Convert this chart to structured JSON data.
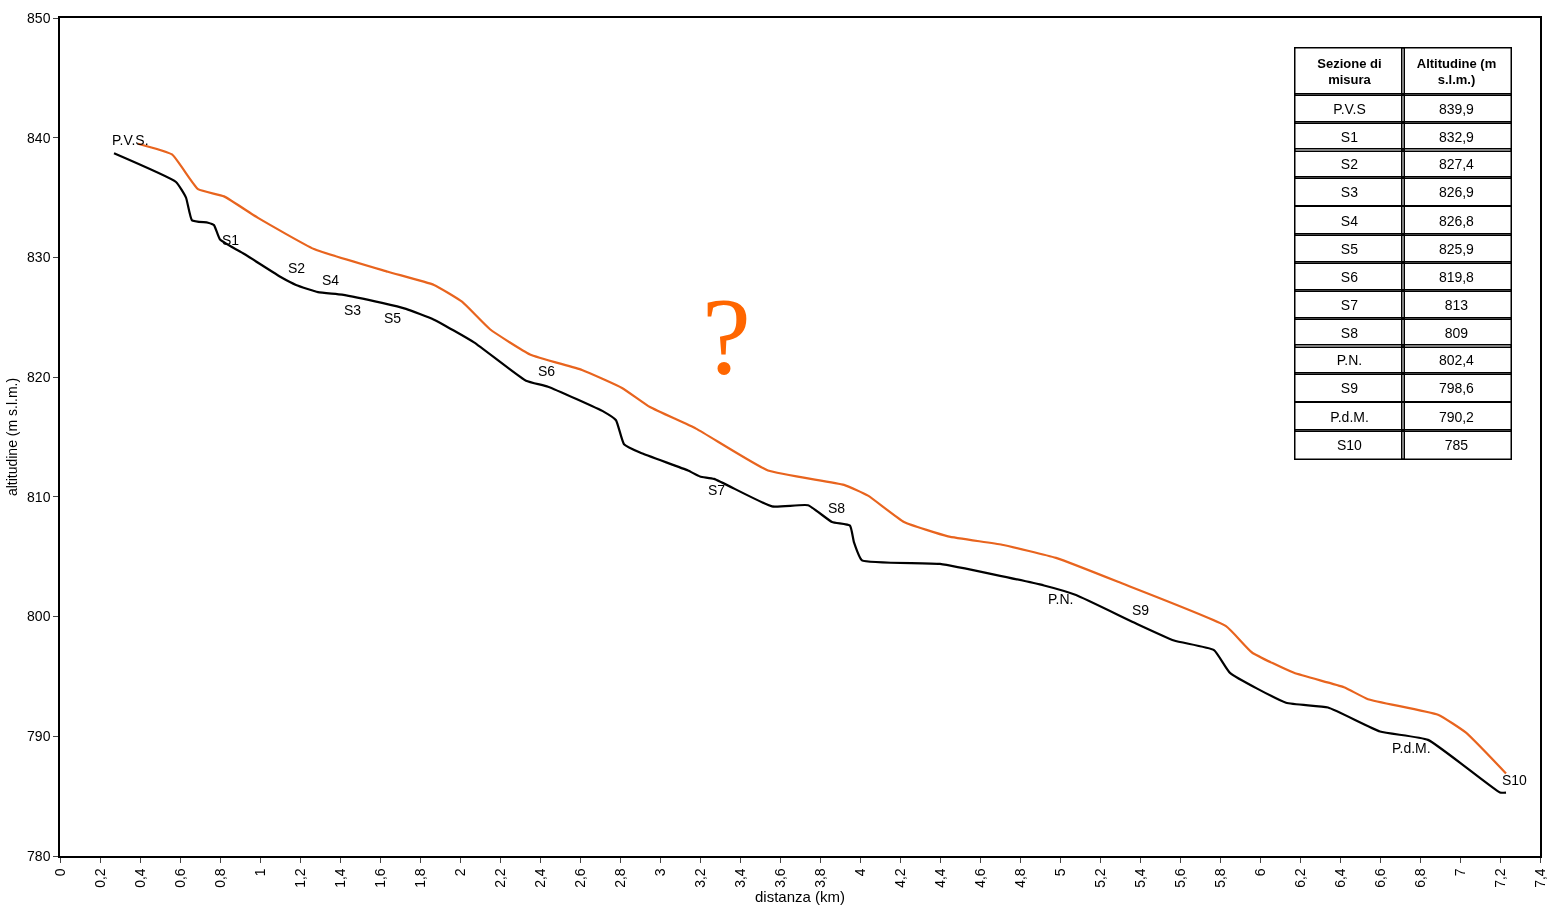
{
  "chart_data": {
    "type": "line",
    "xlabel": "distanza (km)",
    "ylabel": "altitudine (m s.l.m.)",
    "xlim": [
      0,
      7.4
    ],
    "ylim": [
      780,
      850
    ],
    "xticks": [
      0,
      {
        "value": 0.2,
        "label": "0,2"
      },
      {
        "value": 0.4,
        "label": "0,4"
      },
      {
        "value": 0.6,
        "label": "0,6"
      },
      {
        "value": 0.8,
        "label": "0,8"
      },
      1,
      {
        "value": 1.2,
        "label": "1,2"
      },
      {
        "value": 1.4,
        "label": "1,4"
      },
      {
        "value": 1.6,
        "label": "1,6"
      },
      {
        "value": 1.8,
        "label": "1,8"
      },
      2,
      {
        "value": 2.2,
        "label": "2,2"
      },
      {
        "value": 2.4,
        "label": "2,4"
      },
      {
        "value": 2.6,
        "label": "2,6"
      },
      {
        "value": 2.8,
        "label": "2,8"
      },
      3,
      {
        "value": 3.2,
        "label": "3,2"
      },
      {
        "value": 3.4,
        "label": "3,4"
      },
      {
        "value": 3.6,
        "label": "3,6"
      },
      {
        "value": 3.8,
        "label": "3,8"
      },
      4,
      {
        "value": 4.2,
        "label": "4,2"
      },
      {
        "value": 4.4,
        "label": "4,4"
      },
      {
        "value": 4.6,
        "label": "4,6"
      },
      {
        "value": 4.8,
        "label": "4,8"
      },
      5,
      {
        "value": 5.2,
        "label": "5,2"
      },
      {
        "value": 5.4,
        "label": "5,4"
      },
      {
        "value": 5.6,
        "label": "5,6"
      },
      {
        "value": 5.8,
        "label": "5,8"
      },
      6,
      {
        "value": 6.2,
        "label": "6,2"
      },
      {
        "value": 6.4,
        "label": "6,4"
      },
      {
        "value": 6.6,
        "label": "6,6"
      },
      {
        "value": 6.8,
        "label": "6,8"
      },
      7,
      {
        "value": 7.2,
        "label": "7,2"
      },
      {
        "value": 7.4,
        "label": "7,4"
      }
    ],
    "yticks": [
      780,
      790,
      800,
      810,
      820,
      830,
      840,
      850
    ],
    "grid": false,
    "marker": "none",
    "line_style": "solid",
    "series": [
      {
        "color": "#000000",
        "x": [
          0.27,
          0.58,
          0.63,
          0.66,
          0.74,
          0.77,
          0.8,
          0.93,
          1.11,
          1.18,
          1.29,
          1.41,
          1.61,
          1.73,
          1.87,
          2.07,
          2.33,
          2.44,
          2.72,
          2.78,
          2.82,
          2.9,
          3.14,
          3.2,
          3.27,
          3.56,
          3.74,
          3.86,
          3.95,
          3.97,
          4.01,
          4.4,
          4.92,
          5.08,
          5.37,
          5.57,
          5.77,
          5.85,
          6.13,
          6.34,
          6.6,
          6.84,
          7.2,
          7.23
        ],
        "values": [
          838.7,
          836.3,
          835.0,
          833.1,
          832.9,
          832.7,
          831.5,
          830.2,
          828.3,
          827.7,
          827.1,
          826.9,
          826.2,
          825.7,
          824.8,
          822.9,
          819.7,
          819.2,
          817.1,
          816.4,
          814.4,
          813.7,
          812.2,
          811.7,
          811.5,
          809.2,
          809.3,
          807.9,
          807.6,
          806.2,
          804.7,
          804.4,
          802.6,
          801.8,
          799.5,
          798.0,
          797.2,
          795.3,
          792.8,
          792.4,
          790.4,
          789.7,
          785.3,
          785.3
        ]
      },
      {
        "color": "#e8641e",
        "x": [
          0.39,
          0.56,
          0.69,
          0.82,
          0.99,
          1.27,
          1.64,
          1.87,
          2.01,
          2.15,
          2.35,
          2.61,
          2.81,
          2.95,
          3.18,
          3.54,
          3.92,
          4.04,
          4.22,
          4.44,
          4.71,
          4.98,
          5.29,
          5.83,
          5.96,
          6.17,
          6.42,
          6.54,
          6.89,
          7.03,
          7.23
        ],
        "values": [
          839.5,
          838.6,
          835.7,
          835.1,
          833.3,
          830.7,
          828.8,
          827.7,
          826.3,
          824.0,
          821.9,
          820.6,
          819.1,
          817.5,
          815.7,
          812.2,
          811.0,
          810.1,
          807.9,
          806.7,
          806.0,
          804.9,
          802.9,
          799.2,
          797.0,
          795.3,
          794.1,
          793.1,
          791.8,
          790.3,
          786.9
        ]
      }
    ],
    "annotations": [
      "?",
      "Sezione di misura",
      "Altitudine (m s.l.m.)",
      "P.V.S",
      "839,9",
      "S1",
      "832,9",
      "S2",
      "827,4",
      "S3",
      "826,9",
      "S4",
      "826,8",
      "S5",
      "825,9",
      "S6",
      "819,8",
      "S7",
      "813",
      "S8",
      "809",
      "P.N.",
      "802,4",
      "S9",
      "798,6",
      "P.d.M.",
      "790,2",
      "S10",
      "785",
      {
        "text": "P.V.S.",
        "x": 0.27,
        "y": 838.7
      },
      {
        "text": "S1",
        "x": 0.77,
        "y": 832.7
      },
      {
        "text": "S2",
        "x": 1.15,
        "y": 828.0
      },
      {
        "text": "S3",
        "x": 1.38,
        "y": 826.9
      },
      {
        "text": "S4",
        "x": 1.32,
        "y": 827.0
      },
      {
        "text": "S5",
        "x": 1.58,
        "y": 826.2
      },
      {
        "text": "S6",
        "x": 2.4,
        "y": 819.4
      },
      {
        "text": "S7",
        "x": 3.2,
        "y": 811.8
      },
      {
        "text": "S8",
        "x": 3.85,
        "y": 808.0
      },
      {
        "text": "P.N.",
        "x": 4.9,
        "y": 802.7
      },
      {
        "text": "S9",
        "x": 5.37,
        "y": 799.5
      },
      {
        "text": "P.d.M.",
        "x": 6.62,
        "y": 790.3
      },
      {
        "text": "S10",
        "x": 7.22,
        "y": 785.3
      }
    ]
  }
}
